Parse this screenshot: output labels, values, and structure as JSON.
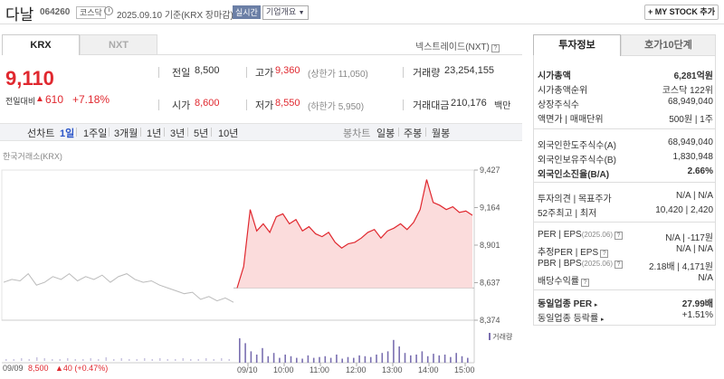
{
  "header": {
    "name": "다날",
    "code": "064260",
    "market_badge": "코스닥",
    "date_text": "2025.09.10  기준(KRX 장마감)",
    "realtime_label": "실시간",
    "overview_label": "기업개요",
    "mystock_label": "+ MY STOCK 추가"
  },
  "tabs": {
    "krx": "KRX",
    "nxt": "NXT",
    "nextrade": "넥스트레이드(NXT)"
  },
  "quote": {
    "price": "9,110",
    "change_label": "전일대비",
    "change_arrow": "▲",
    "change_value": "610",
    "change_pct": "+7.18%",
    "prev_close_label": "전일",
    "prev_close": "8,500",
    "high_label": "고가",
    "high": "9,360",
    "upper_limit": "(상한가 11,050)",
    "volume_label": "거래량",
    "volume": "23,254,155",
    "open_label": "시가",
    "open": "8,600",
    "low_label": "저가",
    "low": "8,550",
    "lower_limit": "(하한가 5,950)",
    "amount_label": "거래대금",
    "amount": "210,176",
    "amount_unit": "백만"
  },
  "periods": {
    "line_chart": "선차트",
    "items": [
      "1일",
      "1주일",
      "3개월",
      "1년",
      "3년",
      "5년",
      "10년"
    ],
    "active": "1일",
    "candle": "봉차트",
    "candle_items": [
      "일봉",
      "주봉",
      "월봉"
    ]
  },
  "chart_source": "한국거래소(KRX)",
  "chart_data": {
    "type": "area",
    "yticks": [
      "9,427",
      "9,164",
      "8,901",
      "8,637",
      "8,374"
    ],
    "ylim": [
      8374,
      9427
    ],
    "xticks": [
      "09/09",
      "09/10",
      "10:00",
      "11:00",
      "12:00",
      "13:00",
      "14:00",
      "15:00"
    ],
    "prev_day_series": [
      8640,
      8660,
      8650,
      8700,
      8620,
      8640,
      8680,
      8660,
      8700,
      8650,
      8680,
      8660,
      8690,
      8640,
      8680,
      8700,
      8660,
      8640,
      8650,
      8620,
      8600,
      8580,
      8560,
      8570,
      8520,
      8540,
      8510,
      8530,
      8500
    ],
    "today_series": [
      8600,
      8750,
      9150,
      9000,
      9050,
      8990,
      9100,
      9120,
      9050,
      9080,
      9000,
      9030,
      8980,
      8960,
      8990,
      8920,
      8880,
      8910,
      8920,
      8950,
      8990,
      9010,
      8950,
      9000,
      9020,
      9050,
      9010,
      9060,
      9150,
      9360,
      9200,
      9180,
      9150,
      9170,
      9130,
      9140,
      9110
    ],
    "prev_close_line": 8500,
    "volume_label": "거래량",
    "footer_prev": "09/09",
    "footer_price": "8,500",
    "footer_change": "▲40 (+0.47%)",
    "colors": {
      "up": "#e0282f",
      "fill": "#fbdcdc",
      "prev": "#bbbbbb"
    }
  },
  "invest": {
    "tab_a": "투자정보",
    "tab_b": "호가10단계",
    "market_cap_label": "시가총액",
    "market_cap": "6,281억원",
    "cap_rank_label": "시가총액순위",
    "cap_rank": "코스닥 122위",
    "shares_label": "상장주식수",
    "shares": "68,949,040",
    "par_label": "액면가 | 매매단위",
    "par": "500원 | 1주",
    "foreign_limit_label": "외국인한도주식수(A)",
    "foreign_limit": "68,949,040",
    "foreign_hold_label": "외국인보유주식수(B)",
    "foreign_hold": "1,830,948",
    "foreign_ratio_label": "외국인소진율(B/A)",
    "foreign_ratio": "2.66%",
    "opinion_label": "투자의견 | 목표주가",
    "opinion": "N/A | N/A",
    "w52_label": "52주최고 | 최저",
    "w52": "10,420 | 2,420",
    "per_label": "PER | EPS",
    "per_date": "(2025.06)",
    "per": "N/A | -117원",
    "est_per_label": "추정PER | EPS",
    "est_per": "N/A | N/A",
    "pbr_label": "PBR | BPS",
    "pbr_date": "(2025.06)",
    "pbr": "2.18배 | 4,171원",
    "div_label": "배당수익률",
    "div": "N/A",
    "ind_per_label": "동일업종 PER",
    "ind_per": "27.99배",
    "ind_rate_label": "동일업종 등락률",
    "ind_rate": "+1.51%"
  }
}
